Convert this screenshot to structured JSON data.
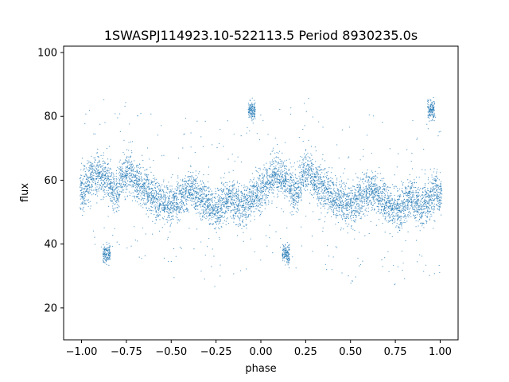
{
  "chart_data": {
    "type": "scatter",
    "title": "1SWASPJ114923.10-522113.5 Period 8930235.0s",
    "xlabel": "phase",
    "ylabel": "flux",
    "xlim": [
      -1.1,
      1.1
    ],
    "ylim": [
      10,
      102
    ],
    "x_ticks": [
      -1.0,
      -0.75,
      -0.5,
      -0.25,
      0.0,
      0.25,
      0.5,
      0.75,
      1.0
    ],
    "x_tick_labels": [
      "−1.00",
      "−0.75",
      "−0.50",
      "−0.25",
      "0.00",
      "0.25",
      "0.50",
      "0.75",
      "1.00"
    ],
    "y_ticks": [
      20,
      40,
      60,
      80,
      100
    ],
    "y_tick_labels": [
      "20",
      "40",
      "60",
      "80",
      "100"
    ],
    "grid": false,
    "marker_color": "#1f77b4",
    "series": [
      {
        "x": [
          -1.0,
          -0.98,
          -0.96,
          -0.94,
          -0.92,
          -0.9,
          -0.88,
          -0.86,
          -0.84,
          -0.82,
          -0.8,
          -0.78,
          -0.76,
          -0.74,
          -0.72,
          -0.7,
          -0.68,
          -0.66,
          -0.64,
          -0.62,
          -0.6,
          -0.58,
          -0.56,
          -0.54,
          -0.52,
          -0.5,
          -0.48,
          -0.46,
          -0.44,
          -0.42,
          -0.4,
          -0.38,
          -0.36,
          -0.34,
          -0.32,
          -0.3,
          -0.28,
          -0.26,
          -0.24,
          -0.22,
          -0.2,
          -0.18,
          -0.16,
          -0.14,
          -0.12,
          -0.1,
          -0.08,
          -0.06,
          -0.04,
          -0.02,
          0.0,
          0.02,
          0.04,
          0.06,
          0.08,
          0.1,
          0.12,
          0.14,
          0.16,
          0.18,
          0.2,
          0.22,
          0.24,
          0.26,
          0.28,
          0.3,
          0.32,
          0.34,
          0.36,
          0.38,
          0.4,
          0.42,
          0.44,
          0.46,
          0.48,
          0.5,
          0.52,
          0.54,
          0.56,
          0.58,
          0.6,
          0.62,
          0.64,
          0.66,
          0.68,
          0.7,
          0.72,
          0.74,
          0.76,
          0.78,
          0.8,
          0.82,
          0.84,
          0.86,
          0.88,
          0.9,
          0.92,
          0.94,
          0.96,
          0.98,
          1.0
        ],
        "y": [
          56,
          58,
          60,
          61,
          62,
          62,
          61,
          60,
          58,
          56,
          56,
          60,
          62,
          63,
          62,
          60,
          59,
          58,
          57,
          56,
          55,
          54,
          54,
          53,
          52,
          52,
          53,
          54,
          55,
          56,
          57,
          57,
          56,
          55,
          54,
          53,
          52,
          51,
          51,
          52,
          53,
          54,
          54,
          53,
          52,
          52,
          53,
          54,
          55,
          57,
          56,
          58,
          60,
          61,
          62,
          62,
          61,
          60,
          58,
          56,
          56,
          60,
          62,
          63,
          62,
          60,
          59,
          58,
          57,
          56,
          55,
          54,
          54,
          53,
          52,
          52,
          53,
          54,
          55,
          56,
          57,
          57,
          56,
          55,
          54,
          53,
          52,
          51,
          51,
          52,
          53,
          54,
          54,
          53,
          52,
          52,
          53,
          54,
          55,
          57,
          56
        ]
      }
    ],
    "annotations_clusters": [
      {
        "x": -0.86,
        "y": 37
      },
      {
        "x": -0.05,
        "y": 82
      },
      {
        "x": 0.14,
        "y": 37
      },
      {
        "x": 0.95,
        "y": 82
      }
    ]
  }
}
